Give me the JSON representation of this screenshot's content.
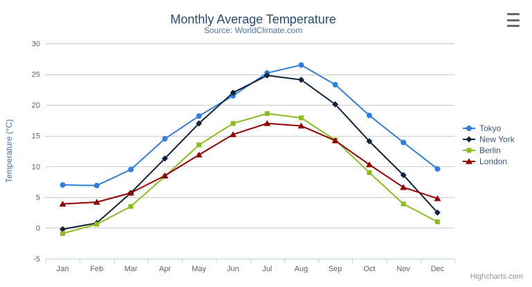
{
  "credits": {
    "label": "Highcharts.com"
  },
  "export_menu": {
    "icon": "hamburger-icon"
  },
  "colors": {
    "grid": "#c8c8c8",
    "axis_line": "#c0d0e0",
    "tick_label": "#606060",
    "title": "#274b6d",
    "subtitle": "#4d759e",
    "axis_title": "#4572a7",
    "legend_text": "#3e576f",
    "credits": "#909090",
    "export_icon": "#666666",
    "background": "#ffffff"
  },
  "chart_data": {
    "type": "line",
    "title": "Monthly Average Temperature",
    "subtitle": "Source: WorldClimate.com",
    "categories": [
      "Jan",
      "Feb",
      "Mar",
      "Apr",
      "May",
      "Jun",
      "Jul",
      "Aug",
      "Sep",
      "Oct",
      "Nov",
      "Dec"
    ],
    "xlabel": "",
    "ylabel": "Temperature (°C)",
    "ylim": [
      -5,
      30
    ],
    "ytick_interval": 5,
    "yticks": [
      -5,
      0,
      5,
      10,
      15,
      20,
      25,
      30
    ],
    "grid": true,
    "legend_position": "right",
    "series": [
      {
        "name": "Tokyo",
        "color": "#2f7ed8",
        "marker": "circle",
        "values": [
          7.0,
          6.9,
          9.5,
          14.5,
          18.2,
          21.5,
          25.2,
          26.5,
          23.3,
          18.3,
          13.9,
          9.6
        ]
      },
      {
        "name": "New York",
        "color": "#0d233a",
        "marker": "diamond",
        "values": [
          -0.2,
          0.8,
          5.7,
          11.3,
          17.0,
          22.0,
          24.8,
          24.1,
          20.1,
          14.1,
          8.6,
          2.5
        ]
      },
      {
        "name": "Berlin",
        "color": "#8bbc21",
        "marker": "square",
        "values": [
          -0.9,
          0.6,
          3.5,
          8.4,
          13.5,
          17.0,
          18.6,
          17.9,
          14.3,
          9.0,
          3.9,
          1.0
        ]
      },
      {
        "name": "London",
        "color": "#910000",
        "marker": "triangle",
        "values": [
          3.9,
          4.2,
          5.7,
          8.5,
          11.9,
          15.2,
          17.0,
          16.6,
          14.2,
          10.3,
          6.6,
          4.8
        ]
      }
    ]
  }
}
